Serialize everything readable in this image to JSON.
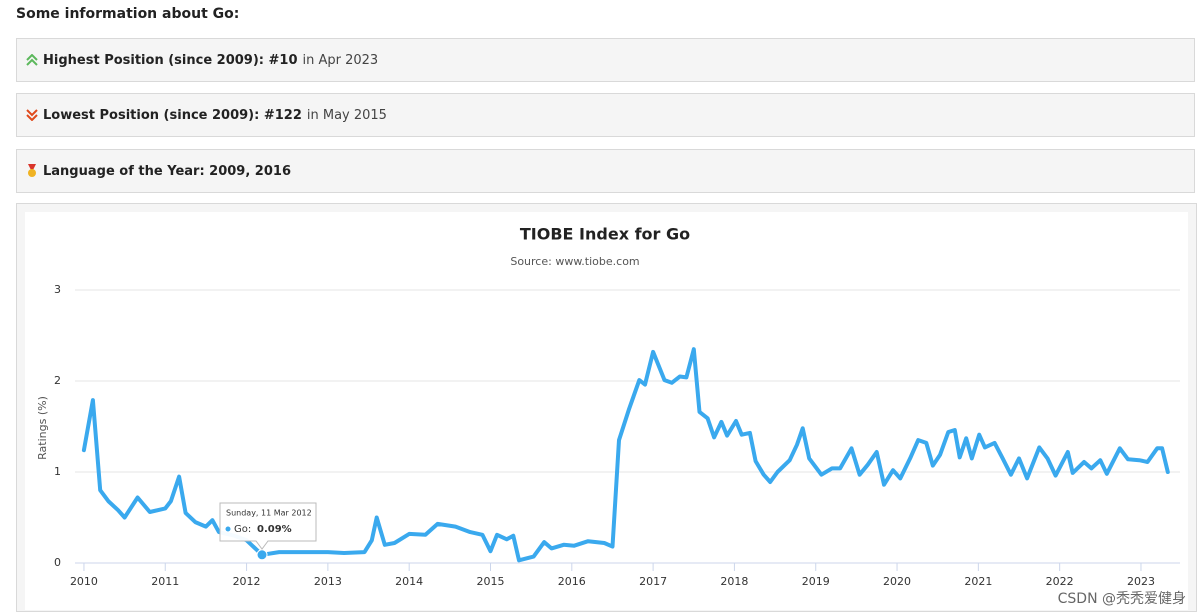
{
  "heading": "Some information about Go:",
  "info": [
    {
      "bold": "Highest Position (since 2009): #10",
      "text": "in Apr 2023"
    },
    {
      "bold": "Lowest Position (since 2009): #122",
      "text": "in May 2015"
    },
    {
      "bold": "Language of the Year: 2009, 2016"
    }
  ],
  "watermark": "CSDN @秃秃爱健身",
  "chart_data": {
    "type": "line",
    "title": "TIOBE Index for Go",
    "subtitle": "Source: www.tiobe.com",
    "y_label": "Ratings (%)",
    "x": [
      2010.0,
      2010.11,
      2010.2,
      2010.3,
      2010.42,
      2010.5,
      2010.66,
      2010.81,
      2011.0,
      2011.07,
      2011.17,
      2011.25,
      2011.37,
      2011.5,
      2011.58,
      2011.66,
      2011.85,
      2012.0,
      2012.19,
      2012.4,
      2012.65,
      2013.0,
      2013.2,
      2013.45,
      2013.54,
      2013.6,
      2013.7,
      2013.82,
      2014.0,
      2014.2,
      2014.35,
      2014.57,
      2014.75,
      2014.9,
      2015.0,
      2015.08,
      2015.2,
      2015.28,
      2015.35,
      2015.53,
      2015.66,
      2015.75,
      2015.9,
      2016.03,
      2016.2,
      2016.4,
      2016.5,
      2016.58,
      2016.7,
      2016.83,
      2016.9,
      2017.0,
      2017.14,
      2017.23,
      2017.33,
      2017.41,
      2017.5,
      2017.57,
      2017.67,
      2017.75,
      2017.84,
      2017.91,
      2018.02,
      2018.09,
      2018.19,
      2018.26,
      2018.36,
      2018.44,
      2018.53,
      2018.68,
      2018.77,
      2018.84,
      2018.92,
      2019.07,
      2019.2,
      2019.3,
      2019.44,
      2019.54,
      2019.64,
      2019.75,
      2019.84,
      2019.95,
      2020.04,
      2020.16,
      2020.26,
      2020.36,
      2020.44,
      2020.53,
      2020.63,
      2020.71,
      2020.77,
      2020.85,
      2020.92,
      2021.01,
      2021.08,
      2021.2,
      2021.3,
      2021.4,
      2021.5,
      2021.6,
      2021.75,
      2021.85,
      2021.95,
      2022.1,
      2022.16,
      2022.3,
      2022.39,
      2022.5,
      2022.58,
      2022.74,
      2022.84,
      2022.98,
      2023.08,
      2023.2,
      2023.26,
      2023.33
    ],
    "series": [
      {
        "name": "Go",
        "color": "#3aa9ee",
        "values": [
          1.24,
          1.79,
          0.8,
          0.68,
          0.58,
          0.5,
          0.72,
          0.56,
          0.6,
          0.68,
          0.95,
          0.55,
          0.45,
          0.4,
          0.47,
          0.34,
          0.3,
          0.25,
          0.09,
          0.12,
          0.12,
          0.12,
          0.11,
          0.12,
          0.25,
          0.5,
          0.2,
          0.22,
          0.32,
          0.31,
          0.43,
          0.4,
          0.34,
          0.31,
          0.13,
          0.31,
          0.26,
          0.3,
          0.03,
          0.07,
          0.23,
          0.16,
          0.2,
          0.19,
          0.24,
          0.22,
          0.18,
          1.35,
          1.68,
          2.01,
          1.96,
          2.32,
          2.01,
          1.98,
          2.05,
          2.04,
          2.35,
          1.66,
          1.59,
          1.38,
          1.55,
          1.4,
          1.56,
          1.41,
          1.43,
          1.12,
          0.97,
          0.89,
          1.0,
          1.13,
          1.3,
          1.48,
          1.15,
          0.97,
          1.04,
          1.04,
          1.26,
          0.97,
          1.08,
          1.22,
          0.86,
          1.02,
          0.93,
          1.15,
          1.35,
          1.32,
          1.07,
          1.19,
          1.44,
          1.46,
          1.16,
          1.37,
          1.15,
          1.41,
          1.27,
          1.32,
          1.15,
          0.97,
          1.15,
          0.93,
          1.27,
          1.15,
          0.96,
          1.22,
          0.99,
          1.11,
          1.04,
          1.13,
          0.98,
          1.26,
          1.14,
          1.13,
          1.11,
          1.26,
          1.26,
          1.0
        ]
      }
    ],
    "xlim": [
      2009.89,
      2023.48
    ],
    "xticks": [
      2010,
      2011,
      2012,
      2013,
      2014,
      2015,
      2016,
      2017,
      2018,
      2019,
      2020,
      2021,
      2022,
      2023
    ],
    "ylim": [
      0,
      3
    ],
    "yticks": [
      0,
      1,
      2,
      3
    ],
    "grid": true,
    "tooltip": {
      "date": "Sunday, 11 Mar 2012",
      "label": "Go:",
      "value_label": "0.09%"
    }
  }
}
